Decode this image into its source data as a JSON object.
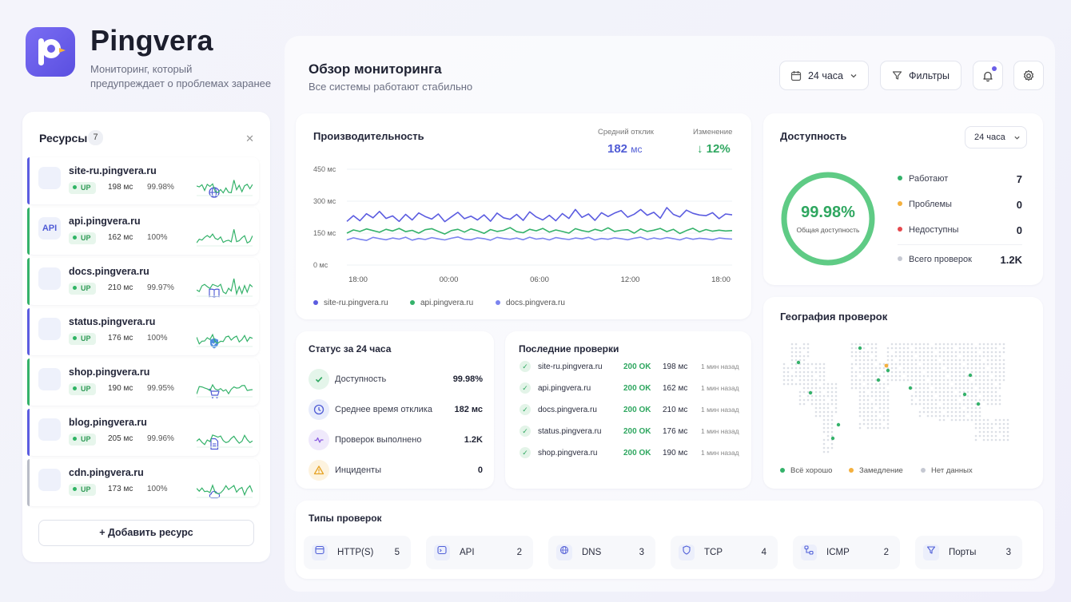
{
  "brand": {
    "name": "Pingvera",
    "tagline_1": "Мониторинг, который",
    "tagline_2": "предупреждает о проблемах заранее"
  },
  "sidebar": {
    "title": "Ресурсы",
    "count": "7",
    "add_label": "+ Добавить ресурс",
    "items": [
      {
        "name": "site-ru.pingvera.ru",
        "status": "UP",
        "ms": "198",
        "unit": "мс",
        "uptime": "99.98%",
        "icon": "globe-icon",
        "color": "#5b5ce0"
      },
      {
        "name": "api.pingvera.ru",
        "status": "UP",
        "ms": "162",
        "unit": "мс",
        "uptime": "100%",
        "icon": "api-icon",
        "color": "#34b26a"
      },
      {
        "name": "docs.pingvera.ru",
        "status": "UP",
        "ms": "210",
        "unit": "мс",
        "uptime": "99.97%",
        "icon": "book-icon",
        "color": "#34b26a"
      },
      {
        "name": "status.pingvera.ru",
        "status": "UP",
        "ms": "176",
        "unit": "мс",
        "uptime": "100%",
        "icon": "shield-icon",
        "color": "#5b5ce0"
      },
      {
        "name": "shop.pingvera.ru",
        "status": "UP",
        "ms": "190",
        "unit": "мс",
        "uptime": "99.95%",
        "icon": "cart-icon",
        "color": "#34b26a"
      },
      {
        "name": "blog.pingvera.ru",
        "status": "UP",
        "ms": "205",
        "unit": "мс",
        "uptime": "99.96%",
        "icon": "document-icon",
        "color": "#5b5ce0"
      },
      {
        "name": "cdn.pingvera.ru",
        "status": "UP",
        "ms": "173",
        "unit": "мс",
        "uptime": "100%",
        "icon": "cloud-icon",
        "color": "#b9bcc7"
      }
    ]
  },
  "header": {
    "title": "Обзор мониторинга",
    "subtitle": "Все системы работают стабильно",
    "range": "24 часа",
    "filters": "Фильтры"
  },
  "performance": {
    "title": "Производительность",
    "avg_label": "Средний отклик",
    "avg_value": "182",
    "avg_unit": "мс",
    "change_label": "Изменение",
    "change_value": "↓ 12%",
    "legend": [
      "site-ru.pingvera.ru",
      "api.pingvera.ru",
      "docs.pingvera.ru"
    ]
  },
  "chart_data": {
    "type": "line",
    "x_ticks": [
      "18:00",
      "00:00",
      "06:00",
      "12:00",
      "18:00"
    ],
    "y_ticks": [
      "450 мс",
      "300 мс",
      "150 мс",
      "0 мс"
    ],
    "ylim": [
      0,
      450
    ],
    "series": [
      {
        "name": "site-ru.pingvera.ru",
        "color": "#5b5ce0",
        "values": [
          205,
          232,
          208,
          241,
          222,
          252,
          219,
          231,
          205,
          238,
          212,
          245,
          228,
          216,
          240,
          204,
          226,
          248,
          218,
          230,
          212,
          236,
          206,
          244,
          222,
          215,
          238,
          210,
          250,
          226,
          212,
          234,
          208,
          242,
          219,
          261,
          224,
          240,
          210,
          246,
          228,
          244,
          256,
          225,
          239,
          261,
          234,
          248,
          220,
          270,
          238,
          226,
          258,
          243,
          235,
          232,
          246,
          218,
          240,
          236
        ]
      },
      {
        "name": "api.pingvera.ru",
        "color": "#34b26a",
        "values": [
          150,
          165,
          158,
          170,
          162,
          154,
          168,
          160,
          172,
          157,
          163,
          150,
          166,
          171,
          158,
          146,
          162,
          168,
          155,
          170,
          161,
          149,
          167,
          158,
          163,
          176,
          157,
          152,
          168,
          161,
          172,
          155,
          165,
          158,
          150,
          171,
          162,
          156,
          168,
          160,
          175,
          158,
          163,
          166,
          150,
          170,
          158,
          164,
          172,
          157,
          168,
          148,
          162,
          173,
          156,
          167,
          159,
          164,
          160,
          162
        ]
      },
      {
        "name": "docs.pingvera.ru",
        "color": "#7b84ef",
        "values": [
          118,
          128,
          121,
          116,
          130,
          124,
          119,
          127,
          122,
          131,
          117,
          125,
          120,
          129,
          123,
          118,
          126,
          132,
          121,
          119,
          128,
          124,
          117,
          130,
          125,
          121,
          127,
          119,
          131,
          122,
          126,
          118,
          129,
          124,
          120,
          127,
          123,
          130,
          118,
          125,
          121,
          128,
          124,
          119,
          126,
          131,
          120,
          127,
          122,
          129,
          124,
          118,
          128,
          121,
          126,
          123,
          119,
          127,
          124,
          122
        ]
      }
    ]
  },
  "availability": {
    "title": "Доступность",
    "range": "24 часа",
    "percent": "99.98%",
    "percent_value": 99.98,
    "sub": "Общая доступность",
    "rows": [
      {
        "label": "Работают",
        "value": "7",
        "color": "#34b26a"
      },
      {
        "label": "Проблемы",
        "value": "0",
        "color": "#f4b03e"
      },
      {
        "label": "Недоступны",
        "value": "0",
        "color": "#e5484d"
      },
      {
        "label": "Всего проверок",
        "value": "1.2K",
        "color": "#c5c8d2"
      }
    ]
  },
  "geo": {
    "title": "География проверок",
    "legend": [
      {
        "label": "Всё хорошо",
        "color": "#34b26a"
      },
      {
        "label": "Замедление",
        "color": "#f4b03e"
      },
      {
        "label": "Нет данных",
        "color": "#c5c8d2"
      }
    ]
  },
  "status24": {
    "title": "Статус за 24 часа",
    "rows": [
      {
        "label": "Доступность",
        "value": "99.98%",
        "icon": "check-icon",
        "bg": "#e4f5ea",
        "fg": "#2fa760"
      },
      {
        "label": "Среднее время отклика",
        "value": "182 мс",
        "icon": "clock-icon",
        "bg": "#e8ecfb",
        "fg": "#4f5bd5"
      },
      {
        "label": "Проверок выполнено",
        "value": "1.2K",
        "icon": "activity-icon",
        "bg": "#efe9fb",
        "fg": "#8a5be0"
      },
      {
        "label": "Инциденты",
        "value": "0",
        "icon": "warning-icon",
        "bg": "#fdf3df",
        "fg": "#e6a325"
      }
    ]
  },
  "last_checks": {
    "title": "Последние проверки",
    "rows": [
      {
        "name": "site-ru.pingvera.ru",
        "status": "200 OK",
        "ms": "198 мс",
        "time": "1 мин назад"
      },
      {
        "name": "api.pingvera.ru",
        "status": "200 OK",
        "ms": "162 мс",
        "time": "1 мин назад"
      },
      {
        "name": "docs.pingvera.ru",
        "status": "200 OK",
        "ms": "210 мс",
        "time": "1 мин назад"
      },
      {
        "name": "status.pingvera.ru",
        "status": "200 OK",
        "ms": "176 мс",
        "time": "1 мин назад"
      },
      {
        "name": "shop.pingvera.ru",
        "status": "200 OK",
        "ms": "190 мс",
        "time": "1 мин назад"
      }
    ]
  },
  "check_types": {
    "title": "Типы проверок",
    "items": [
      {
        "label": "HTTP(S)",
        "value": "5",
        "icon": "http-icon"
      },
      {
        "label": "API",
        "value": "2",
        "icon": "api-icon"
      },
      {
        "label": "DNS",
        "value": "3",
        "icon": "globe-icon"
      },
      {
        "label": "TCP",
        "value": "4",
        "icon": "shield-icon"
      },
      {
        "label": "ICMP",
        "value": "2",
        "icon": "network-icon"
      },
      {
        "label": "Порты",
        "value": "3",
        "icon": "filter-icon"
      }
    ]
  }
}
